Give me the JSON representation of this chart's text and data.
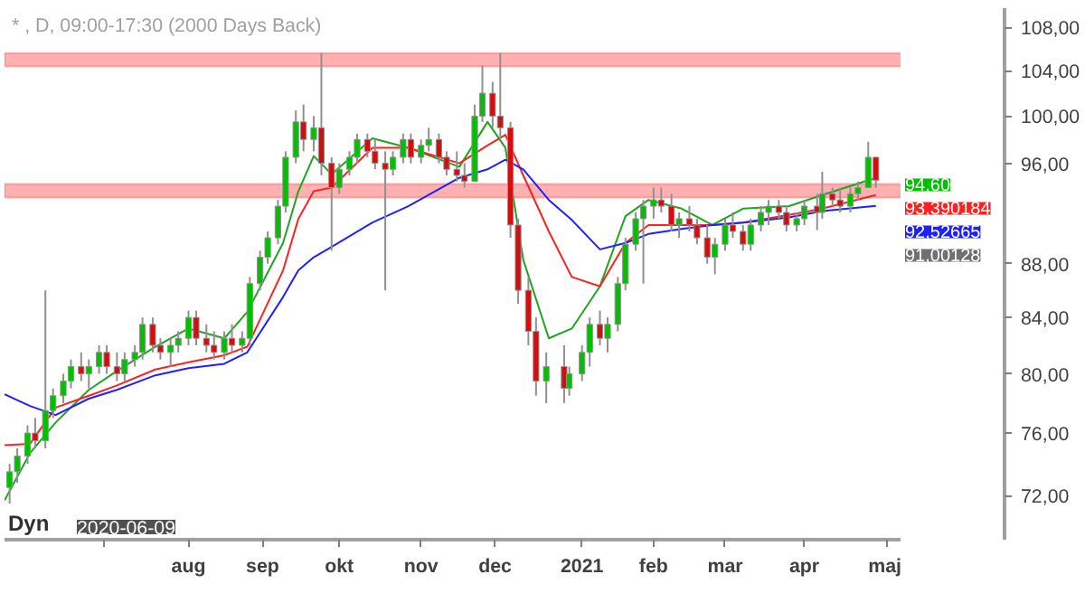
{
  "chart_data": {
    "type": "candlestick",
    "title": "* , D, 09:00-17:30 (2000 Days Back)",
    "x": [
      "2020-05-25",
      "2020-05-28",
      "2020-06-01",
      "2020-06-04",
      "2020-06-08",
      "2020-06-11",
      "2020-06-15",
      "2020-06-18",
      "2020-06-22",
      "2020-06-25",
      "2020-06-29",
      "2020-07-02",
      "2020-07-06",
      "2020-07-09",
      "2020-07-13",
      "2020-07-16",
      "2020-07-20",
      "2020-07-23",
      "2020-07-27",
      "2020-07-30",
      "2020-08-03",
      "2020-08-06",
      "2020-08-10",
      "2020-08-13",
      "2020-08-17",
      "2020-08-20",
      "2020-08-24",
      "2020-08-27",
      "2020-08-31",
      "2020-09-03",
      "2020-09-07",
      "2020-09-10",
      "2020-09-14",
      "2020-09-17",
      "2020-09-21",
      "2020-09-24",
      "2020-09-28",
      "2020-10-01",
      "2020-10-05",
      "2020-10-08",
      "2020-10-12",
      "2020-10-15",
      "2020-10-19",
      "2020-10-22",
      "2020-10-26",
      "2020-10-29",
      "2020-11-02",
      "2020-11-05",
      "2020-11-09",
      "2020-11-12",
      "2020-11-16",
      "2020-11-19",
      "2020-11-23",
      "2020-11-26",
      "2020-11-30",
      "2020-12-03",
      "2020-12-07",
      "2020-12-10",
      "2020-12-14",
      "2020-12-17",
      "2020-12-21",
      "2020-12-28",
      "2020-12-30",
      "2021-01-04",
      "2021-01-07",
      "2021-01-11",
      "2021-01-14",
      "2021-01-18",
      "2021-01-21",
      "2021-01-25",
      "2021-01-28",
      "2021-02-01",
      "2021-02-04",
      "2021-02-08",
      "2021-02-11",
      "2021-02-15",
      "2021-02-18",
      "2021-02-22",
      "2021-02-25",
      "2021-03-01",
      "2021-03-04",
      "2021-03-08",
      "2021-03-11",
      "2021-03-15",
      "2021-03-18",
      "2021-03-22",
      "2021-03-25",
      "2021-03-29",
      "2021-04-01",
      "2021-04-06",
      "2021-04-08",
      "2021-04-12",
      "2021-04-15",
      "2021-04-19",
      "2021-04-22",
      "2021-04-26",
      "2021-04-29"
    ],
    "ohlc": [
      [
        72.5,
        74,
        71.5,
        73.5
      ],
      [
        73.5,
        75,
        72.8,
        74.5
      ],
      [
        74.5,
        76.5,
        74,
        76
      ],
      [
        76,
        77,
        75,
        75.5
      ],
      [
        75.5,
        86,
        75,
        77.5
      ],
      [
        77.5,
        79,
        77,
        78.5
      ],
      [
        78.5,
        80,
        78,
        79.5
      ],
      [
        79.5,
        81,
        79,
        80.5
      ],
      [
        80.5,
        81.5,
        79.5,
        80
      ],
      [
        80,
        81,
        79,
        80.5
      ],
      [
        80.5,
        82,
        80,
        81.5
      ],
      [
        81.5,
        82,
        80,
        80.5
      ],
      [
        80.5,
        81.5,
        79.5,
        80
      ],
      [
        80,
        81.5,
        79.5,
        81
      ],
      [
        81,
        82,
        80.5,
        81.5
      ],
      [
        81.5,
        84,
        81,
        83.5
      ],
      [
        83.5,
        84,
        81.5,
        82
      ],
      [
        82,
        82.5,
        81,
        81.5
      ],
      [
        81.5,
        82.5,
        80.5,
        82
      ],
      [
        82,
        83,
        81.5,
        82.5
      ],
      [
        82.5,
        84.5,
        82,
        84
      ],
      [
        84,
        84.5,
        82,
        82.5
      ],
      [
        82.5,
        83.5,
        81.5,
        82
      ],
      [
        82,
        83,
        81,
        81.5
      ],
      [
        81.5,
        83,
        81,
        82.5
      ],
      [
        82.5,
        83.5,
        81.5,
        82
      ],
      [
        82,
        83,
        81.5,
        82.5
      ],
      [
        82.5,
        87,
        82,
        86.5
      ],
      [
        86.5,
        89,
        86,
        88.5
      ],
      [
        88.5,
        90.5,
        88,
        90
      ],
      [
        90,
        93,
        89.5,
        92.5
      ],
      [
        92.5,
        97,
        92,
        96.5
      ],
      [
        96.5,
        100.5,
        96,
        99.5
      ],
      [
        99.5,
        101,
        97,
        98
      ],
      [
        98,
        100,
        97,
        99
      ],
      [
        99,
        105.6,
        95,
        96
      ],
      [
        96,
        96.5,
        89,
        94
      ],
      [
        94,
        96,
        93.5,
        95.5
      ],
      [
        95.5,
        97,
        95,
        96.5
      ],
      [
        96.5,
        98.5,
        96,
        98
      ],
      [
        98,
        98.5,
        96.5,
        97
      ],
      [
        97,
        98,
        95.5,
        96
      ],
      [
        96,
        97,
        86,
        95.5
      ],
      [
        95.5,
        97,
        95,
        96.5
      ],
      [
        96.5,
        98.5,
        96,
        98
      ],
      [
        98,
        98.5,
        96,
        96.5
      ],
      [
        96.5,
        98,
        96,
        97.5
      ],
      [
        97.5,
        99,
        97,
        98
      ],
      [
        98,
        98.5,
        96,
        96.5
      ],
      [
        96.5,
        97,
        95,
        95.5
      ],
      [
        95.5,
        97,
        94.5,
        95
      ],
      [
        95,
        96,
        94,
        94.5
      ],
      [
        94.5,
        101,
        94.5,
        100
      ],
      [
        100,
        104.5,
        99.5,
        102
      ],
      [
        102,
        103,
        99,
        100
      ],
      [
        100,
        105.6,
        98,
        99
      ],
      [
        99,
        99.5,
        90,
        91
      ],
      [
        91,
        91.5,
        85,
        86
      ],
      [
        86,
        87,
        82,
        83
      ],
      [
        83,
        84,
        78.5,
        79.5
      ],
      [
        79.5,
        81.5,
        78,
        80.5
      ],
      [
        80.5,
        82,
        78,
        79
      ],
      [
        79,
        80.5,
        78.5,
        80
      ],
      [
        80,
        82,
        79.5,
        81.5
      ],
      [
        81.5,
        84,
        80.5,
        83.5
      ],
      [
        83.5,
        84.5,
        82,
        82.5
      ],
      [
        82.5,
        84,
        81.5,
        83.5
      ],
      [
        83.5,
        87,
        83,
        86.5
      ],
      [
        86.5,
        90,
        86,
        89.5
      ],
      [
        89.5,
        92,
        89,
        91.5
      ],
      [
        91.5,
        93,
        86.5,
        92.5
      ],
      [
        92.5,
        94,
        91.5,
        93
      ],
      [
        93,
        94,
        92,
        92.5
      ],
      [
        92.5,
        93.5,
        90.5,
        91
      ],
      [
        91,
        92,
        90,
        91.5
      ],
      [
        91.5,
        92.5,
        90.5,
        91
      ],
      [
        91,
        91.5,
        89.5,
        90
      ],
      [
        90,
        91,
        88,
        88.5
      ],
      [
        88.5,
        90,
        87.2,
        89.5
      ],
      [
        89.5,
        91.5,
        89,
        91
      ],
      [
        91,
        92,
        90,
        90.5
      ],
      [
        90.5,
        91,
        89,
        89.5
      ],
      [
        89.5,
        91.5,
        89,
        91
      ],
      [
        91,
        92.5,
        90.5,
        92
      ],
      [
        92,
        93,
        91,
        92.5
      ],
      [
        92.5,
        93,
        91.5,
        92
      ],
      [
        92,
        92.5,
        90.5,
        91
      ],
      [
        91,
        92,
        90.5,
        91.5
      ],
      [
        91.5,
        93,
        91,
        92.5
      ],
      [
        92.5,
        93.5,
        90.6,
        92
      ],
      [
        92,
        95.3,
        91.5,
        93.5
      ],
      [
        93.5,
        94,
        92.5,
        93
      ],
      [
        93,
        94,
        92,
        92.5
      ],
      [
        92.5,
        94,
        92,
        93.5
      ],
      [
        93.5,
        94.5,
        93,
        94
      ],
      [
        94,
        97.8,
        94,
        96.5
      ],
      [
        96.5,
        96.5,
        94,
        94.6
      ]
    ],
    "colors": [
      "#00c000",
      "#00c000",
      "#00c000",
      "#d01010",
      "#00c000",
      "#00c000",
      "#00c000",
      "#00c000",
      "#d01010",
      "#00c000",
      "#00c000",
      "#d01010",
      "#d01010",
      "#00c000",
      "#00c000",
      "#00c000",
      "#d01010",
      "#d01010",
      "#00c000",
      "#00c000",
      "#00c000",
      "#d01010",
      "#d01010",
      "#d01010",
      "#00c000",
      "#d01010",
      "#00c000",
      "#00c000",
      "#00c000",
      "#00c000",
      "#00c000",
      "#00c000",
      "#00c000",
      "#d01010",
      "#00c000",
      "#d01010",
      "#d01010",
      "#00c000",
      "#00c000",
      "#00c000",
      "#d01010",
      "#d01010",
      "#d01010",
      "#00c000",
      "#00c000",
      "#d01010",
      "#00c000",
      "#00c000",
      "#d01010",
      "#d01010",
      "#d01010",
      "#d01010",
      "#00c000",
      "#00c000",
      "#d01010",
      "#d01010",
      "#d01010",
      "#d01010",
      "#d01010",
      "#d01010",
      "#00c000",
      "#d01010",
      "#00c000",
      "#00c000",
      "#00c000",
      "#d01010",
      "#00c000",
      "#00c000",
      "#00c000",
      "#00c000",
      "#00c000",
      "#00c000",
      "#d01010",
      "#d01010",
      "#00c000",
      "#d01010",
      "#d01010",
      "#d01010",
      "#00c000",
      "#00c000",
      "#d01010",
      "#d01010",
      "#00c000",
      "#00c000",
      "#00c000",
      "#d01010",
      "#d01010",
      "#00c000",
      "#00c000",
      "#d01010",
      "#00c000",
      "#d01010",
      "#d01010",
      "#00c000",
      "#00c000",
      "#00c000",
      "#d01010"
    ],
    "value_labels": [
      null,
      null,
      null,
      null,
      null,
      null,
      null,
      null,
      null,
      null,
      null,
      null,
      null,
      null,
      null,
      null,
      null,
      null,
      null,
      null,
      null,
      null,
      null,
      null,
      null,
      null,
      null,
      null,
      null,
      null,
      null,
      null,
      null,
      null,
      null,
      null,
      null,
      null,
      null,
      null,
      null,
      null,
      null,
      null,
      null,
      null,
      null,
      null,
      null,
      null,
      null,
      null,
      null,
      null,
      null,
      null,
      null,
      null,
      null,
      null,
      null,
      null,
      null,
      null,
      null,
      null,
      null,
      null,
      null,
      null,
      null,
      null,
      null,
      null,
      null,
      null,
      null,
      null,
      null,
      null,
      null,
      null,
      null,
      null,
      null,
      null,
      null,
      null,
      null,
      null,
      null,
      null,
      null,
      null,
      null,
      null,
      "94,60"
    ],
    "series": [
      {
        "type": "line",
        "color": "#1fa51f",
        "x": [
          "2020-05-23",
          "2020-06-02",
          "2020-06-12",
          "2020-06-25",
          "2020-07-06",
          "2020-07-21",
          "2020-08-03",
          "2020-08-17",
          "2020-08-26",
          "2020-09-09",
          "2020-09-15",
          "2020-09-21",
          "2020-09-28",
          "2020-10-14",
          "2020-10-28",
          "2020-11-17",
          "2020-11-28",
          "2020-12-05",
          "2020-12-12",
          "2020-12-22",
          "2020-12-31",
          "2021-01-11",
          "2021-01-21",
          "2021-01-30",
          "2021-02-12",
          "2021-02-24",
          "2021-03-08",
          "2021-03-26",
          "2021-04-08",
          "2021-04-29"
        ],
        "values": [
          71.7,
          74.7,
          76.7,
          78.9,
          80.2,
          81.9,
          83.2,
          82.5,
          84.4,
          89.6,
          93.7,
          96.6,
          95.1,
          98.1,
          97.3,
          95.7,
          99.5,
          97.3,
          88.3,
          82.5,
          83.2,
          86.3,
          91.7,
          93,
          92.3,
          91,
          92.3,
          92.5,
          93.4,
          94.8
        ]
      },
      {
        "type": "line",
        "color": "#ff2020",
        "x": [
          "2020-05-23",
          "2020-06-02",
          "2020-06-12",
          "2020-06-25",
          "2020-07-06",
          "2020-07-21",
          "2020-08-03",
          "2020-08-17",
          "2020-08-26",
          "2020-09-09",
          "2020-09-15",
          "2020-09-21",
          "2020-09-28",
          "2020-10-14",
          "2020-10-28",
          "2020-11-17",
          "2020-11-28",
          "2020-12-05",
          "2020-12-12",
          "2020-12-22",
          "2020-12-31",
          "2021-01-11",
          "2021-01-21",
          "2021-01-30",
          "2021-02-12",
          "2021-02-24",
          "2021-03-08",
          "2021-03-26",
          "2021-04-08",
          "2021-04-29"
        ],
        "values": [
          75.2,
          75.3,
          77.7,
          78.5,
          79.2,
          80.3,
          80.8,
          81.3,
          81.9,
          87.5,
          91.5,
          93.7,
          94,
          97.3,
          97.3,
          96,
          97.5,
          98.4,
          95,
          90.5,
          87,
          86.3,
          89.6,
          91,
          91,
          91,
          91.2,
          91.8,
          92.3,
          93.390184
        ],
        "value_labels": [
          null,
          null,
          null,
          null,
          null,
          null,
          null,
          null,
          null,
          null,
          null,
          null,
          null,
          null,
          null,
          null,
          null,
          null,
          null,
          null,
          null,
          null,
          null,
          null,
          null,
          null,
          null,
          null,
          null,
          "93,390184"
        ]
      },
      {
        "type": "line",
        "color": "#2020ff",
        "x": [
          "2020-05-23",
          "2020-06-02",
          "2020-06-12",
          "2020-06-25",
          "2020-07-06",
          "2020-07-21",
          "2020-08-03",
          "2020-08-17",
          "2020-08-26",
          "2020-09-09",
          "2020-09-15",
          "2020-09-21",
          "2020-09-28",
          "2020-10-14",
          "2020-10-28",
          "2020-11-17",
          "2020-11-28",
          "2020-12-05",
          "2020-12-12",
          "2020-12-22",
          "2020-12-31",
          "2021-01-11",
          "2021-01-21",
          "2021-01-30",
          "2021-02-12",
          "2021-02-24",
          "2021-03-08",
          "2021-03-26",
          "2021-04-08",
          "2021-04-29"
        ],
        "values": [
          78.6,
          77.8,
          77.2,
          78.3,
          78.9,
          79.9,
          80.4,
          80.7,
          81.5,
          85.5,
          87.5,
          88.5,
          89.3,
          91.2,
          92.5,
          94.8,
          95.5,
          96.3,
          95.5,
          93,
          91.4,
          89.1,
          89.6,
          90.3,
          90.7,
          91,
          91.2,
          91.6,
          92.1,
          92.52665
        ],
        "value_labels": [
          null,
          null,
          null,
          null,
          null,
          null,
          null,
          null,
          null,
          null,
          null,
          null,
          null,
          null,
          null,
          null,
          null,
          null,
          null,
          null,
          null,
          null,
          null,
          null,
          null,
          null,
          null,
          null,
          null,
          "92,52665"
        ]
      }
    ],
    "bands": [
      {
        "axis": "y",
        "from": 104.4,
        "to": 105.6,
        "color": "#ff9090"
      },
      {
        "axis": "y",
        "from": 93.2,
        "to": 94.3,
        "color": "#ff9090"
      }
    ],
    "annotations": [
      "Dyn",
      "2020-06-09",
      "91,00128"
    ],
    "log": true,
    "xlim": [
      "2020-05-23",
      "2021-05-09"
    ],
    "xticks": [
      {
        "value": "2020-07-01",
        "label": null
      },
      {
        "value": "2020-08-03",
        "label": "aug"
      },
      {
        "value": "2020-09-01",
        "label": "sep"
      },
      {
        "value": "2020-10-01",
        "label": "okt"
      },
      {
        "value": "2020-11-02",
        "label": "nov"
      },
      {
        "value": "2020-12-01",
        "label": "dec"
      },
      {
        "value": "2021-01-04",
        "label": "2021"
      },
      {
        "value": "2021-02-01",
        "label": "feb"
      },
      {
        "value": "2021-03-01",
        "label": "mar"
      },
      {
        "value": "2021-04-01",
        "label": "apr"
      },
      {
        "value": "2021-05-03",
        "label": "maj"
      }
    ],
    "ylim": [
      69.3,
      109.8
    ],
    "yticks": [
      {
        "value": 72,
        "label": "72,00"
      },
      {
        "value": 76,
        "label": "76,00"
      },
      {
        "value": 80,
        "label": "80,00"
      },
      {
        "value": 84,
        "label": "84,00"
      },
      {
        "value": 88,
        "label": "88,00"
      },
      {
        "value": 96,
        "label": "96,00"
      },
      {
        "value": 100,
        "label": "100,00"
      },
      {
        "value": 104,
        "label": "104,00"
      },
      {
        "value": 108,
        "label": "108,00"
      }
    ],
    "grid": false
  }
}
